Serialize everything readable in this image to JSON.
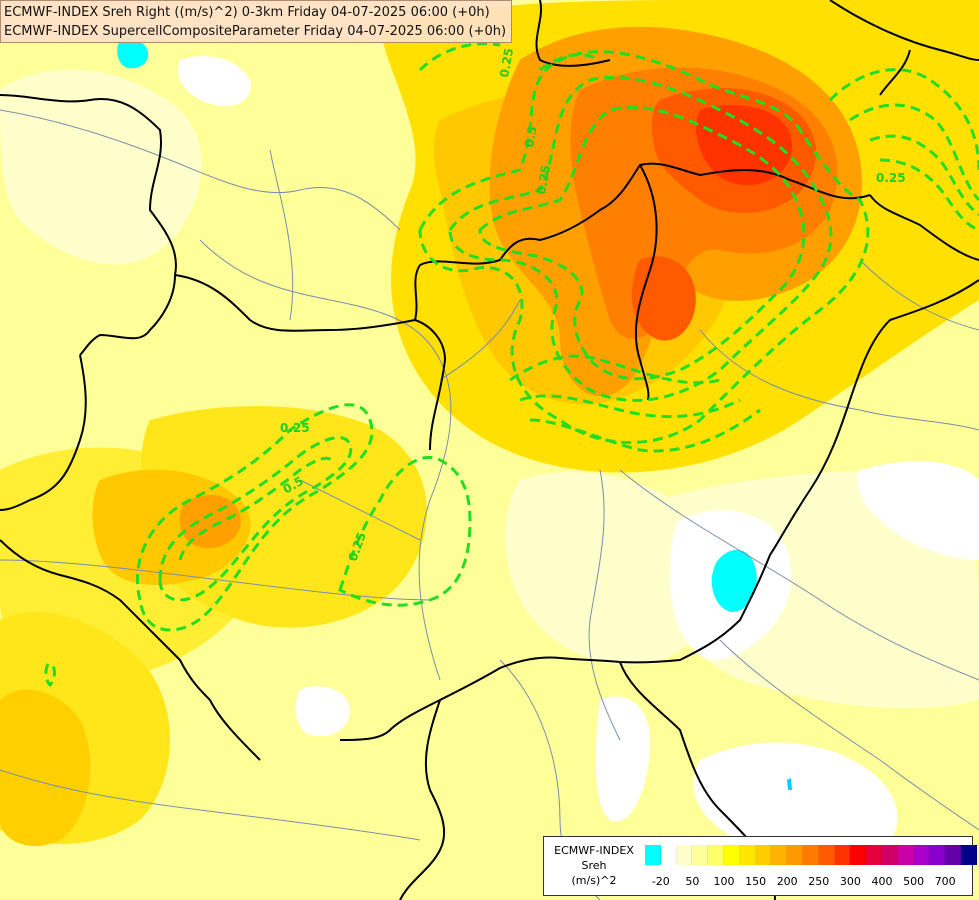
{
  "header": {
    "line1": "ECMWF-INDEX Sreh Right ((m/s)^2) 0-3km Friday 04-07-2025 06:00 (+0h)",
    "line2": "ECMWF-INDEX SupercellCompositeParameter Friday 04-07-2025 06:00 (+0h)"
  },
  "legend": {
    "line1": "ECMWF-INDEX",
    "line2": "Sreh",
    "line3": "(m/s)^2",
    "colors": [
      "#00ffff",
      "#ffffff",
      "#ffffcc",
      "#ffff99",
      "#ffff66",
      "#ffff00",
      "#ffe600",
      "#ffcc00",
      "#ffb300",
      "#ff9900",
      "#ff7a00",
      "#ff5a00",
      "#ff3300",
      "#ff0000",
      "#e6003c",
      "#cc0066",
      "#cc00aa",
      "#aa00cc",
      "#8800cc",
      "#6600aa",
      "#000088"
    ],
    "ticks": [
      {
        "label": "-20",
        "slot": 1
      },
      {
        "label": "50",
        "slot": 3
      },
      {
        "label": "100",
        "slot": 5
      },
      {
        "label": "150",
        "slot": 7
      },
      {
        "label": "200",
        "slot": 9
      },
      {
        "label": "250",
        "slot": 11
      },
      {
        "label": "300",
        "slot": 13
      },
      {
        "label": "400",
        "slot": 15
      },
      {
        "label": "500",
        "slot": 17
      },
      {
        "label": "700",
        "slot": 19
      }
    ]
  },
  "contour_labels": [
    "0.25",
    "0.25",
    "0.25",
    "0.25",
    "0.5",
    "0.5",
    "0.25"
  ],
  "colors": {
    "contour": "#22dd22",
    "border": "#000000",
    "rivers": "#7a8ea8"
  }
}
